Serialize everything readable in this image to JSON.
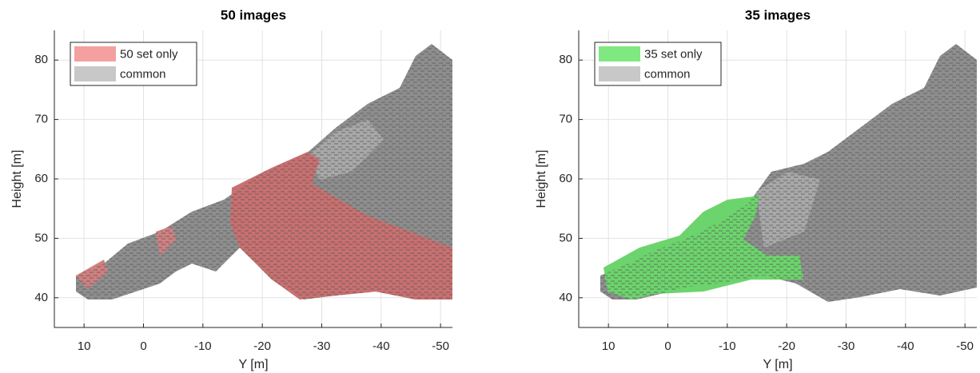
{
  "chart_data": [
    {
      "type": "area",
      "title": "50 images",
      "xlabel": "Y [m]",
      "ylabel": "Height [m]",
      "xlim": [
        15,
        -52
      ],
      "xticks": [
        10,
        0,
        -10,
        -20,
        -30,
        -40,
        -50
      ],
      "ylim": [
        35,
        85
      ],
      "yticks": [
        40,
        50,
        60,
        70,
        80
      ],
      "grid": true,
      "legend": "upper-left",
      "series": [
        {
          "name": "50 set only",
          "color": "#f4a0a0"
        },
        {
          "name": "common",
          "color": "#c8c8c8"
        }
      ]
    },
    {
      "type": "area",
      "title": "35 images",
      "xlabel": "Y [m]",
      "ylabel": "Height [m]",
      "xlim": [
        15,
        -52
      ],
      "xticks": [
        10,
        0,
        -10,
        -20,
        -30,
        -40,
        -50
      ],
      "ylim": [
        35,
        85
      ],
      "yticks": [
        40,
        50,
        60,
        70,
        80
      ],
      "grid": true,
      "legend": "upper-left",
      "series": [
        {
          "name": "35 set only",
          "color": "#80e880"
        },
        {
          "name": "common",
          "color": "#c8c8c8"
        }
      ]
    }
  ]
}
